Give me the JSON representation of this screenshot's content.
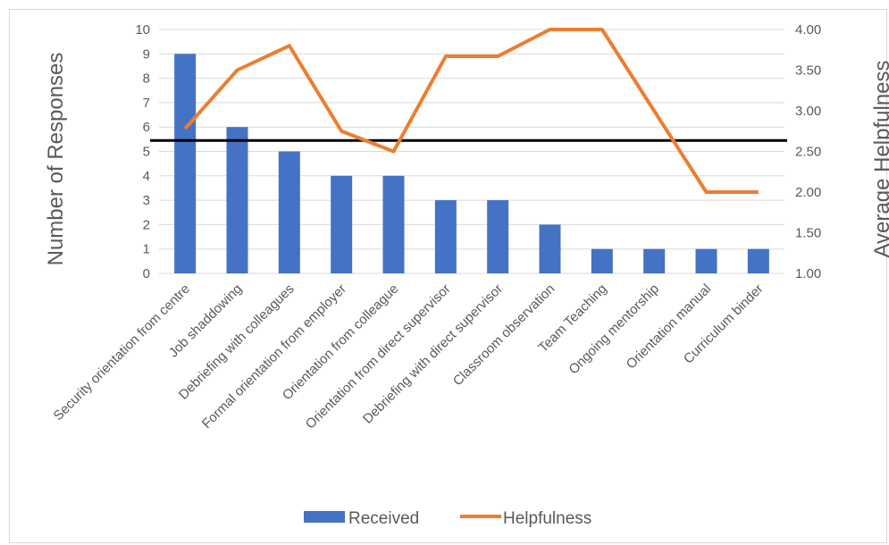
{
  "chart_data": {
    "type": "bar",
    "categories": [
      "Security orientation from centre",
      "Job shaddowing",
      "Debriefing with colleagues",
      "Formal orientation from employer",
      "Orientation from colleague",
      "Orientation from direct supervisor",
      "Debriefing with direct supervisor",
      "Classroom observation",
      "Team Teaching",
      "Ongoing mentorship",
      "Orientation manual",
      "Curriculum binder"
    ],
    "series": [
      {
        "name": "Received",
        "type": "bar",
        "axis": "left",
        "color": "#4472C4",
        "values": [
          9,
          6,
          5,
          4,
          4,
          3,
          3,
          2,
          1,
          1,
          1,
          1
        ]
      },
      {
        "name": "Helpfulness",
        "type": "line",
        "axis": "right",
        "color": "#ED7D31",
        "values": [
          2.78,
          3.5,
          3.8,
          2.75,
          2.5,
          3.67,
          3.67,
          4.0,
          4.0,
          3.0,
          2.0,
          2.0
        ]
      }
    ],
    "reference_line": {
      "axis": "left",
      "value": 5.45,
      "color": "#000000"
    },
    "ylabel": "Number of Responses",
    "y2label": "Average Helpfulness",
    "ylim": [
      0,
      10
    ],
    "y2lim": [
      1,
      4
    ],
    "yticks": [
      "0",
      "1",
      "2",
      "3",
      "4",
      "5",
      "6",
      "7",
      "8",
      "9",
      "10"
    ],
    "y2ticks": [
      "1.00",
      "1.50",
      "2.00",
      "2.50",
      "3.00",
      "3.50",
      "4.00"
    ],
    "grid": true,
    "legend_position": "bottom"
  }
}
